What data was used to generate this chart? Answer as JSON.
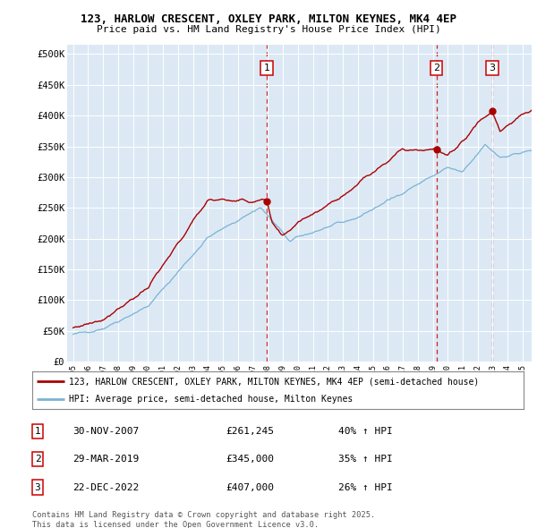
{
  "title_line1": "123, HARLOW CRESCENT, OXLEY PARK, MILTON KEYNES, MK4 4EP",
  "title_line2": "Price paid vs. HM Land Registry's House Price Index (HPI)",
  "bg_color": "#dce9f5",
  "fig_bg_color": "#ffffff",
  "red_line_color": "#aa0000",
  "blue_line_color": "#7ab3d4",
  "vline_color": "#cc0000",
  "ylabel_ticks": [
    "£0",
    "£50K",
    "£100K",
    "£150K",
    "£200K",
    "£250K",
    "£300K",
    "£350K",
    "£400K",
    "£450K",
    "£500K"
  ],
  "ytick_values": [
    0,
    50000,
    100000,
    150000,
    200000,
    250000,
    300000,
    350000,
    400000,
    450000,
    500000
  ],
  "legend_entry1": "123, HARLOW CRESCENT, OXLEY PARK, MILTON KEYNES, MK4 4EP (semi-detached house)",
  "legend_entry2": "HPI: Average price, semi-detached house, Milton Keynes",
  "table_rows": [
    {
      "num": "1",
      "date": "30-NOV-2007",
      "price": "£261,245",
      "change": "40% ↑ HPI"
    },
    {
      "num": "2",
      "date": "29-MAR-2019",
      "price": "£345,000",
      "change": "35% ↑ HPI"
    },
    {
      "num": "3",
      "date": "22-DEC-2022",
      "price": "£407,000",
      "change": "26% ↑ HPI"
    }
  ],
  "footer": "Contains HM Land Registry data © Crown copyright and database right 2025.\nThis data is licensed under the Open Government Licence v3.0.",
  "sale_years": [
    2007.92,
    2019.25,
    2022.97
  ],
  "sale_prices": [
    261245,
    345000,
    407000
  ],
  "sale_labels": [
    "1",
    "2",
    "3"
  ]
}
